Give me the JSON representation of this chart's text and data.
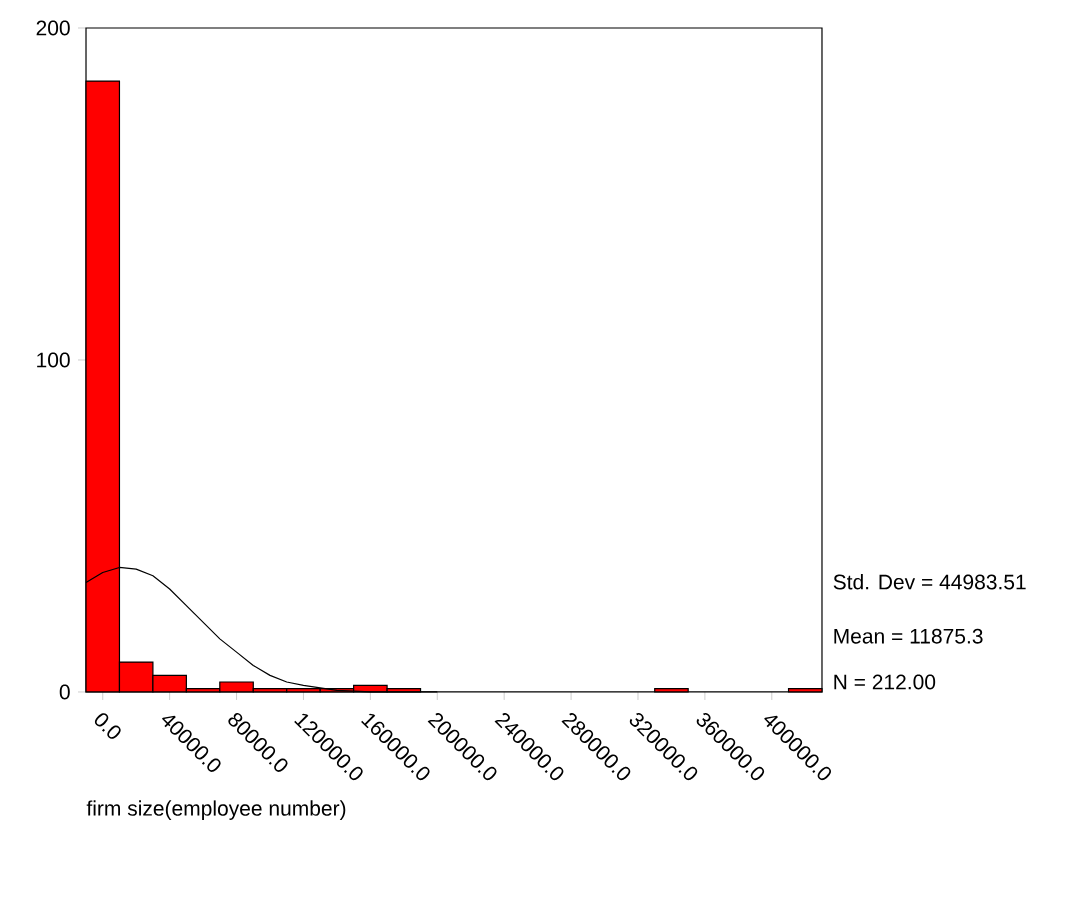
{
  "chart_data": {
    "type": "histogram",
    "xlabel": "firm size(employee number)",
    "bins": [
      -10000,
      10000,
      30000,
      50000,
      70000,
      90000,
      110000,
      130000,
      150000,
      170000,
      190000,
      210000,
      230000,
      250000,
      270000,
      290000,
      310000,
      330000,
      350000,
      370000,
      390000,
      410000,
      430000
    ],
    "series": [
      {
        "color": "#ff0000",
        "values": [
          184,
          9,
          5,
          1,
          3,
          1,
          1,
          1,
          2,
          1,
          0,
          0,
          0,
          0,
          0,
          0,
          0,
          1,
          0,
          0,
          0,
          1
        ]
      },
      {
        "type": "line",
        "color": "#000000",
        "x": [
          -10000,
          0,
          10000,
          20000,
          30000,
          40000,
          50000,
          60000,
          70000,
          80000,
          90000,
          100000,
          110000,
          120000,
          140000,
          160000,
          200000
        ],
        "values": [
          33,
          36,
          37.5,
          37,
          35,
          31,
          26,
          21,
          16,
          12,
          8,
          5,
          3,
          2,
          0.5,
          0,
          0
        ]
      }
    ],
    "xlim": [
      -10000,
      430000
    ],
    "ylim": [
      0,
      200
    ],
    "xticks": [
      {
        "value": 0,
        "label": "0.0"
      },
      {
        "value": 40000,
        "label": "40000.0"
      },
      {
        "value": 80000,
        "label": "80000.0"
      },
      {
        "value": 120000,
        "label": "120000.0"
      },
      {
        "value": 160000,
        "label": "160000.0"
      },
      {
        "value": 200000,
        "label": "200000.0"
      },
      {
        "value": 240000,
        "label": "240000.0"
      },
      {
        "value": 280000,
        "label": "280000.0"
      },
      {
        "value": 320000,
        "label": "320000.0"
      },
      {
        "value": 360000,
        "label": "360000.0"
      },
      {
        "value": 400000,
        "label": "400000.0"
      }
    ],
    "yticks": [
      0,
      100,
      200
    ],
    "annotations": [
      "Std. Dev = 44983.51",
      "Mean = 11875.3",
      "N = 212.00"
    ],
    "grid": false,
    "marker": "none",
    "line_style": "solid"
  }
}
